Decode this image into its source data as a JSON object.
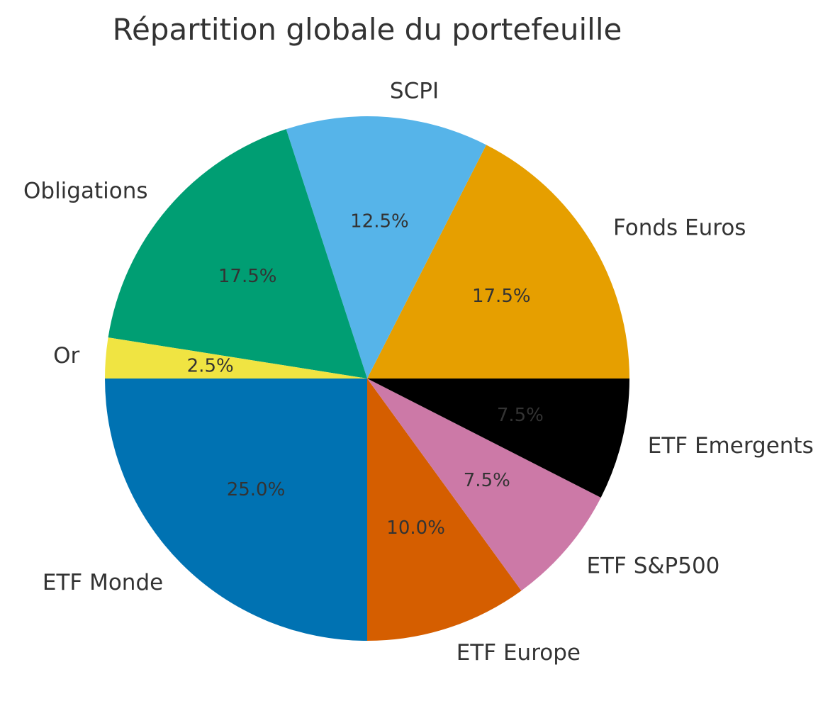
{
  "chart_data": {
    "type": "pie",
    "title": "Répartition globale du portefeuille",
    "slices": [
      {
        "label": "Fonds Euros",
        "value": 17.5,
        "pct_label": "17.5%",
        "color": "#E69F00"
      },
      {
        "label": "SCPI",
        "value": 12.5,
        "pct_label": "12.5%",
        "color": "#56B4E9"
      },
      {
        "label": "Obligations",
        "value": 17.5,
        "pct_label": "17.5%",
        "color": "#009E73"
      },
      {
        "label": "Or",
        "value": 2.5,
        "pct_label": "2.5%",
        "color": "#F0E442"
      },
      {
        "label": "ETF Monde",
        "value": 25.0,
        "pct_label": "25.0%",
        "color": "#0072B2"
      },
      {
        "label": "ETF Europe",
        "value": 10.0,
        "pct_label": "10.0%",
        "color": "#D55E00"
      },
      {
        "label": "ETF S&P500",
        "value": 7.5,
        "pct_label": "7.5%",
        "color": "#CC79A7"
      },
      {
        "label": "ETF Emergents",
        "value": 7.5,
        "pct_label": "7.5%",
        "color": "#000000"
      }
    ],
    "start_angle_deg": 0,
    "direction": "counterclockwise",
    "legend": "none"
  }
}
